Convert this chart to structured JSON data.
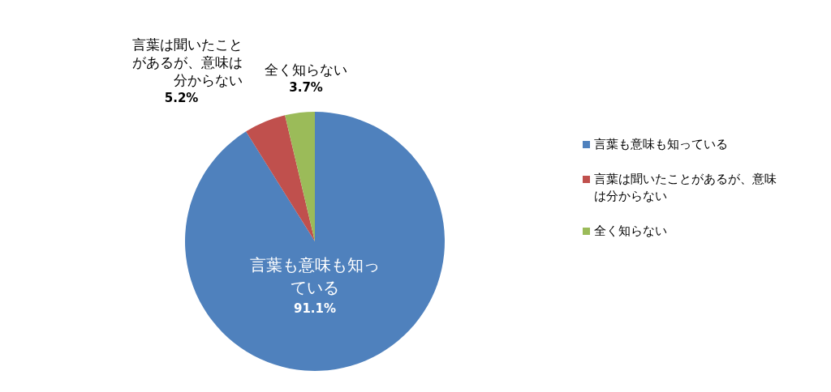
{
  "chart_data": {
    "type": "pie",
    "categories": [
      "言葉も意味も知っている",
      "言葉は聞いたことがあるが、意味は分からない",
      "全く知らない"
    ],
    "values": [
      91.1,
      5.2,
      3.7
    ],
    "colors": [
      "#4f81bd",
      "#c0504d",
      "#9bbb59"
    ],
    "value_labels": [
      "91.1%",
      "5.2%",
      "3.7%"
    ],
    "legend": "right"
  }
}
